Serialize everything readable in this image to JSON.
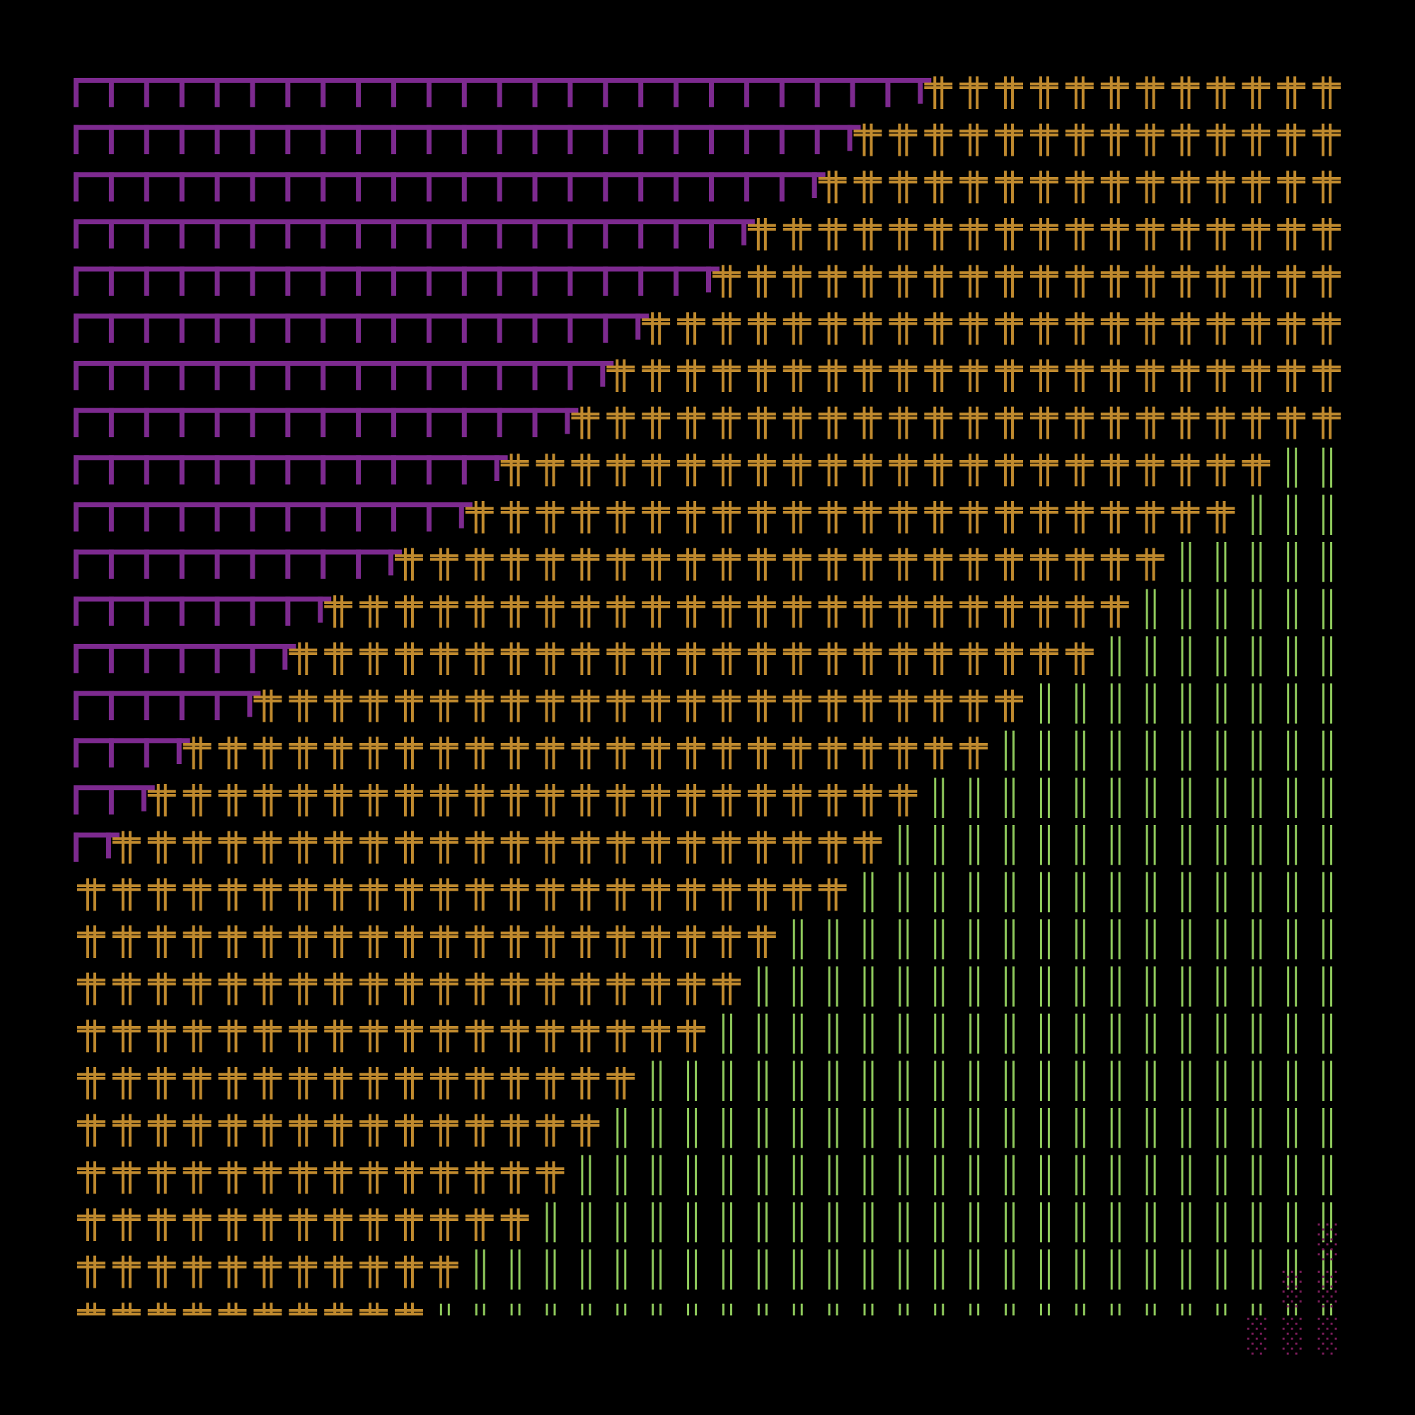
{
  "artwork": {
    "grid": {
      "cols": 36,
      "rows": 27
    },
    "colors": {
      "background": "#000000",
      "purple": "#7d2a8f",
      "gold": "#c08a2e",
      "green": "#8fca5c",
      "magenta_dots": "#7a1c5a"
    },
    "glyphs": {
      "purple": "┌┐",
      "gold": "╬",
      "green": "║",
      "magenta": "░"
    },
    "regions": {
      "purple_region_widths_by_row": [
        24,
        22,
        21,
        19,
        18,
        16,
        15,
        14,
        12,
        11,
        9,
        7,
        6,
        5,
        3,
        2,
        1,
        0,
        0,
        0,
        0,
        0,
        0,
        0,
        0,
        0,
        0
      ],
      "green_region_start_col_by_row": [
        36,
        36,
        36,
        36,
        36,
        36,
        36,
        36,
        34,
        33,
        31,
        30,
        29,
        27,
        26,
        24,
        23,
        22,
        20,
        19,
        18,
        16,
        15,
        14,
        13,
        11,
        10
      ],
      "magenta_cells": [
        [
          25,
          35
        ],
        [
          26,
          34
        ],
        [
          26,
          35
        ],
        [
          27,
          33
        ],
        [
          27,
          34
        ],
        [
          27,
          35
        ]
      ]
    }
  }
}
